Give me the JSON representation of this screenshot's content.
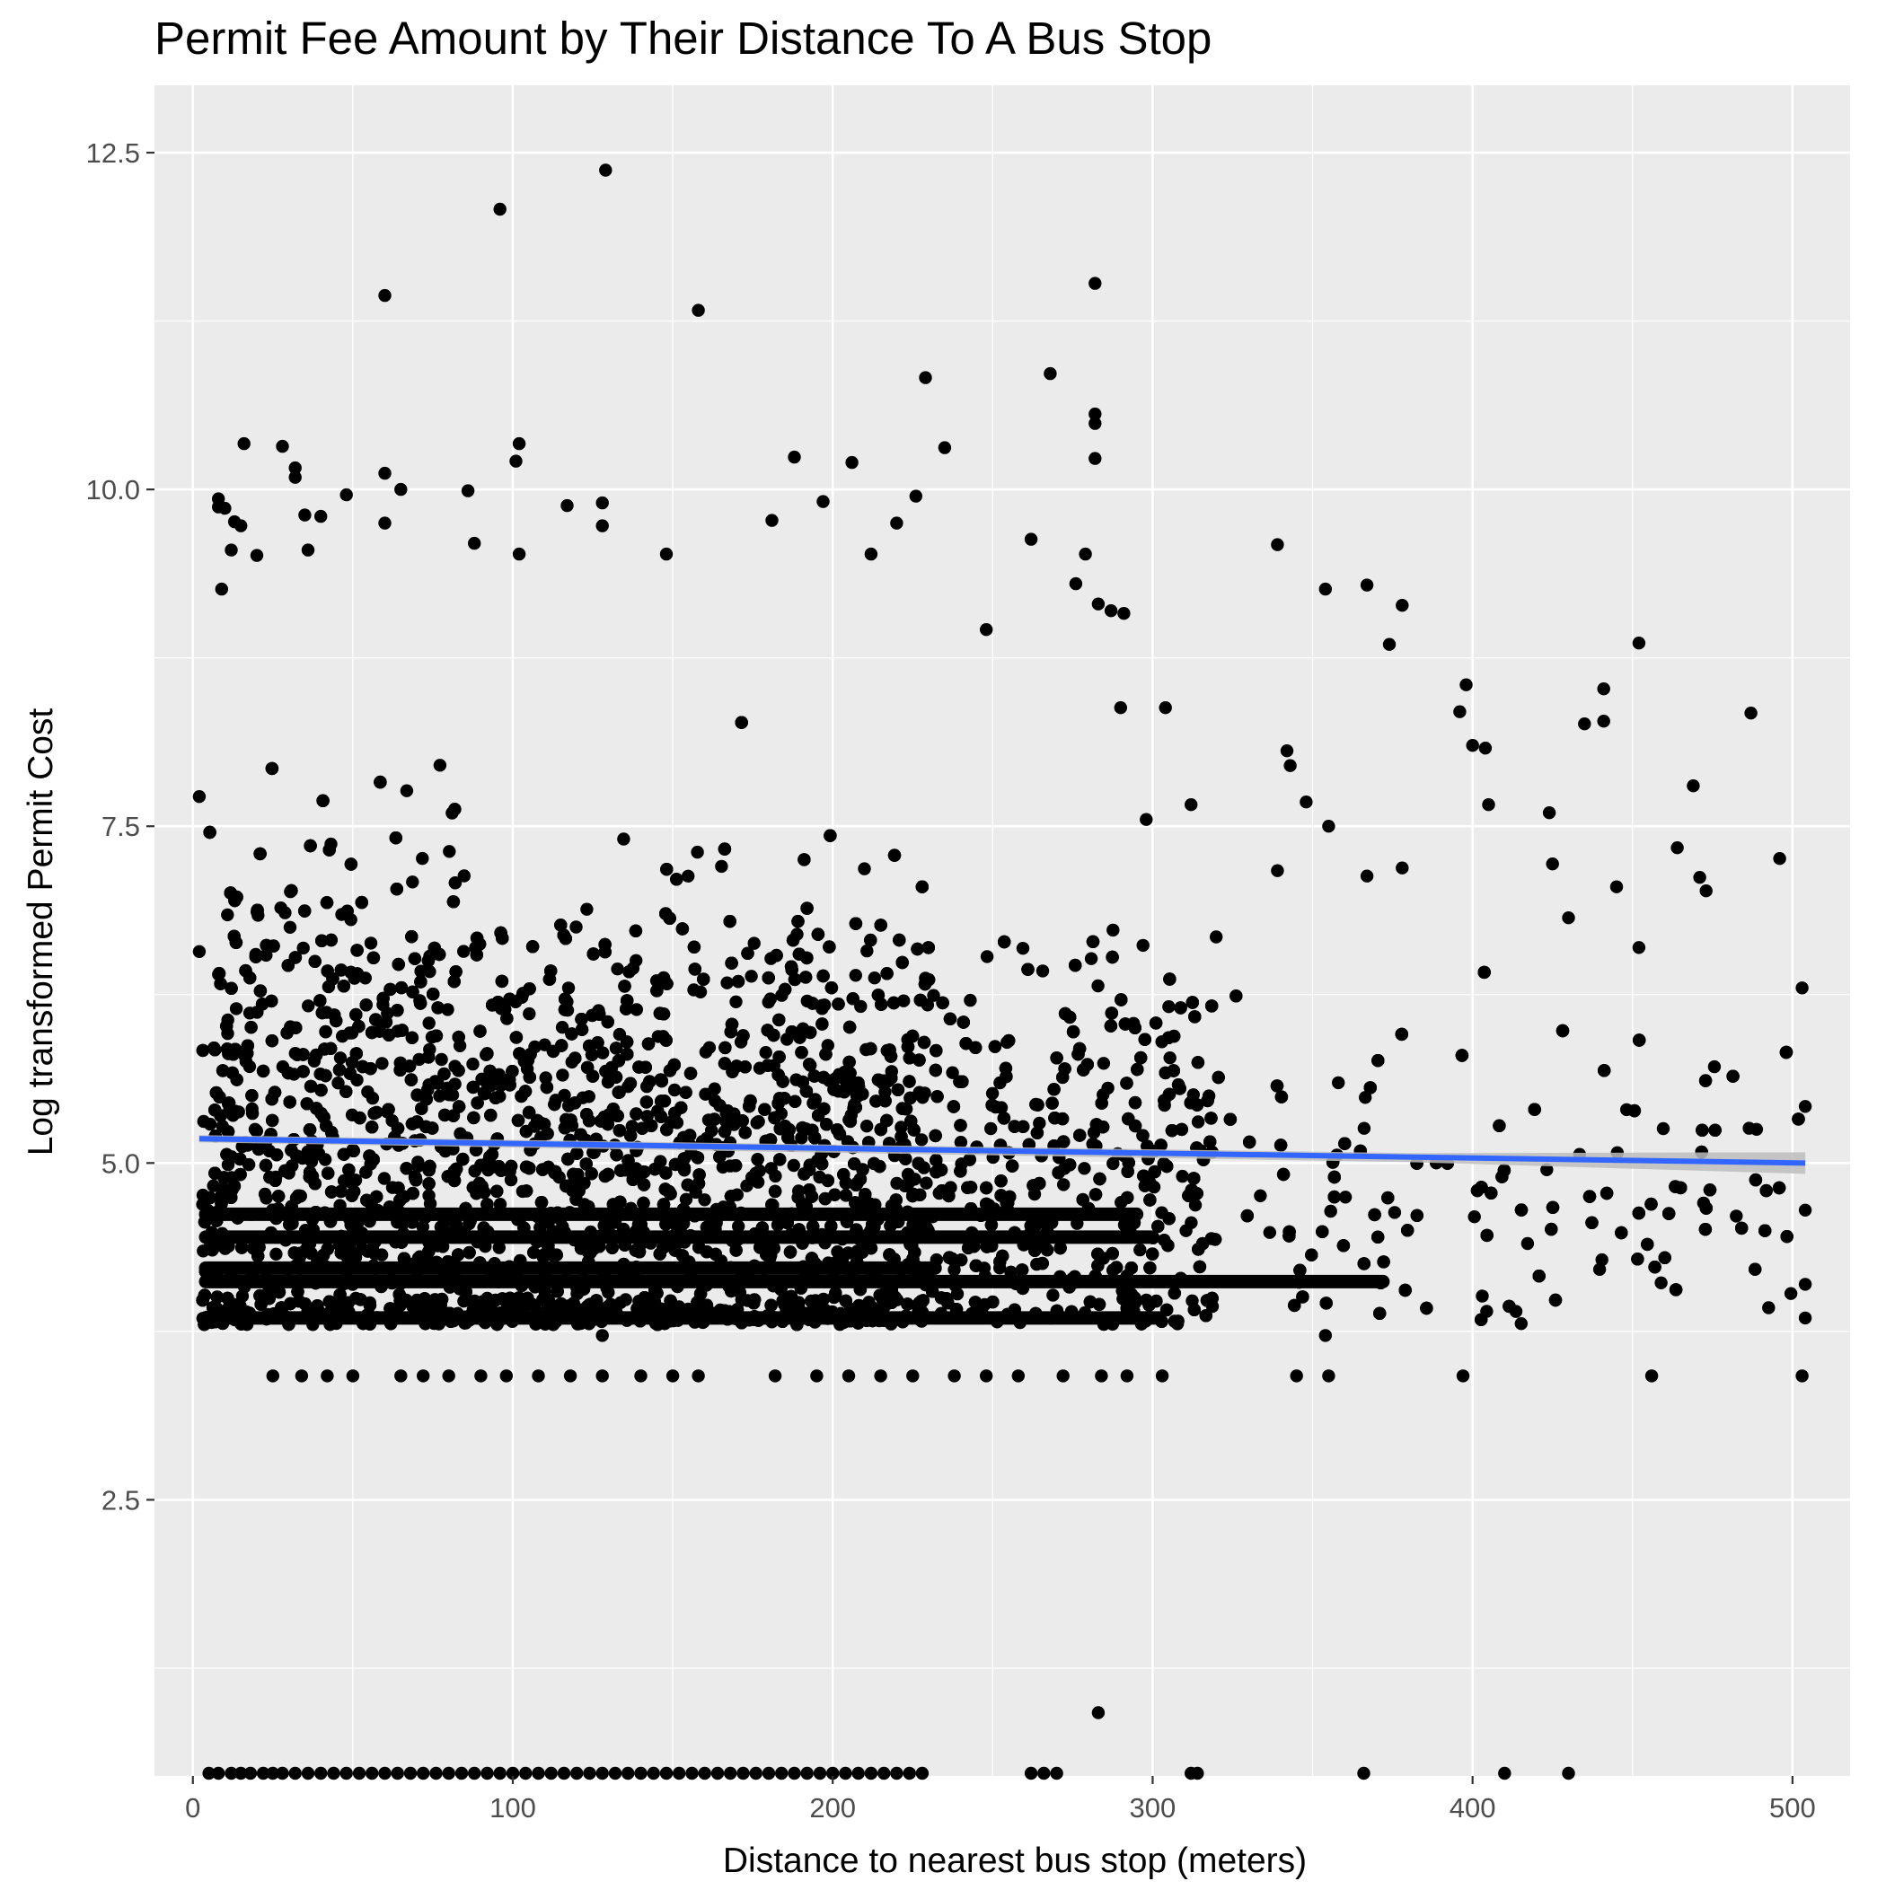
{
  "chart_data": {
    "type": "scatter",
    "title": "Permit Fee Amount by Their Distance To A Bus Stop",
    "xlabel": "Distance to nearest bus stop (meters)",
    "ylabel": "Log transformed Permit Cost",
    "xlim": [
      -12,
      518
    ],
    "ylim": [
      0.45,
      13.0
    ],
    "x_ticks": [
      0,
      100,
      200,
      300,
      400,
      500
    ],
    "x_tick_labels": [
      "0",
      "100",
      "200",
      "300",
      "400",
      "500"
    ],
    "y_ticks": [
      2.5,
      5.0,
      7.5,
      10.0,
      12.5
    ],
    "y_tick_labels": [
      "2.5",
      "5.0",
      "7.5",
      "10.0",
      "12.5"
    ],
    "grid": true,
    "background": "#ebebeb",
    "grid_color": "#ffffff",
    "point_color": "#000000",
    "trend_color": "#3366ff",
    "band_color": "#bdbdbd",
    "trend_line": {
      "x": [
        2,
        504
      ],
      "y": [
        5.18,
        5.0
      ]
    },
    "series": [
      {
        "points": [
          [
            129,
            12.37
          ],
          [
            96,
            12.08
          ],
          [
            60,
            11.44
          ],
          [
            158,
            11.33
          ],
          [
            282,
            11.53
          ],
          [
            229,
            10.83
          ],
          [
            268,
            10.86
          ],
          [
            282,
            10.56
          ],
          [
            282,
            10.49
          ],
          [
            282,
            10.23
          ],
          [
            16,
            10.34
          ],
          [
            28,
            10.32
          ],
          [
            102,
            10.34
          ],
          [
            235,
            10.31
          ],
          [
            188,
            10.24
          ],
          [
            32,
            10.16
          ],
          [
            32,
            10.09
          ],
          [
            60,
            10.12
          ],
          [
            101,
            10.21
          ],
          [
            206,
            10.2
          ],
          [
            8,
            9.93
          ],
          [
            10,
            9.86
          ],
          [
            8,
            9.87
          ],
          [
            13,
            9.76
          ],
          [
            15,
            9.73
          ],
          [
            12,
            9.55
          ],
          [
            48,
            9.96
          ],
          [
            65,
            10.0
          ],
          [
            86,
            9.99
          ],
          [
            117,
            9.88
          ],
          [
            128,
            9.9
          ],
          [
            197,
            9.91
          ],
          [
            226,
            9.95
          ],
          [
            35,
            9.81
          ],
          [
            40,
            9.8
          ],
          [
            60,
            9.75
          ],
          [
            128,
            9.73
          ],
          [
            181,
            9.77
          ],
          [
            220,
            9.75
          ],
          [
            262,
            9.63
          ],
          [
            279,
            9.52
          ],
          [
            339,
            9.59
          ],
          [
            20,
            9.51
          ],
          [
            36,
            9.55
          ],
          [
            88,
            9.6
          ],
          [
            102,
            9.52
          ],
          [
            148,
            9.52
          ],
          [
            212,
            9.52
          ],
          [
            9,
            9.26
          ],
          [
            354,
            9.26
          ],
          [
            367,
            9.29
          ],
          [
            276,
            9.3
          ],
          [
            283,
            9.15
          ],
          [
            287,
            9.1
          ],
          [
            291,
            9.08
          ],
          [
            378,
            9.14
          ],
          [
            374,
            8.85
          ],
          [
            452,
            8.86
          ],
          [
            248,
            8.96
          ],
          [
            290,
            8.38
          ],
          [
            304,
            8.38
          ],
          [
            298,
            7.55
          ],
          [
            312,
            7.66
          ],
          [
            339,
            7.17
          ],
          [
            342,
            8.06
          ],
          [
            343,
            7.95
          ],
          [
            348,
            7.68
          ],
          [
            355,
            7.5
          ],
          [
            367,
            7.13
          ],
          [
            378,
            7.19
          ],
          [
            396,
            8.35
          ],
          [
            398,
            8.55
          ],
          [
            400,
            8.1
          ],
          [
            404,
            8.08
          ],
          [
            405,
            7.66
          ],
          [
            424,
            7.6
          ],
          [
            425,
            7.22
          ],
          [
            430,
            6.82
          ],
          [
            435,
            8.26
          ],
          [
            441,
            8.28
          ],
          [
            441,
            8.52
          ],
          [
            445,
            7.05
          ],
          [
            469,
            7.8
          ],
          [
            464,
            7.34
          ],
          [
            471,
            7.12
          ],
          [
            473,
            7.02
          ],
          [
            487,
            8.34
          ],
          [
            496,
            7.26
          ],
          [
            452,
            6.6
          ],
          [
            498,
            5.82
          ],
          [
            503,
            6.3
          ],
          [
            504,
            5.42
          ],
          [
            504,
            4.65
          ],
          [
            504,
            4.1
          ],
          [
            504,
            3.85
          ],
          [
            503,
            3.42
          ],
          [
            2,
            7.72
          ],
          [
            2,
            6.57
          ],
          [
            283,
            0.92
          ],
          [
            456,
            3.42
          ],
          [
            397,
            3.42
          ],
          [
            354,
            3.72
          ],
          [
            128,
            3.72
          ],
          [
            303,
            3.42
          ],
          [
            272,
            3.42
          ],
          [
            25,
            3.42
          ],
          [
            34,
            3.42
          ],
          [
            42,
            3.42
          ],
          [
            50,
            3.42
          ],
          [
            65,
            3.42
          ],
          [
            72,
            3.42
          ],
          [
            80,
            3.42
          ],
          [
            90,
            3.42
          ],
          [
            98,
            3.42
          ],
          [
            108,
            3.42
          ],
          [
            118,
            3.42
          ],
          [
            128,
            3.42
          ],
          [
            140,
            3.42
          ],
          [
            150,
            3.42
          ],
          [
            158,
            3.42
          ],
          [
            182,
            3.42
          ],
          [
            195,
            3.42
          ],
          [
            205,
            3.42
          ],
          [
            215,
            3.42
          ],
          [
            225,
            3.42
          ],
          [
            238,
            3.42
          ],
          [
            248,
            3.42
          ],
          [
            258,
            3.42
          ],
          [
            284,
            3.42
          ],
          [
            292,
            3.42
          ],
          [
            345,
            3.42
          ],
          [
            355,
            3.42
          ]
        ]
      }
    ],
    "random_points": {
      "seed": 7,
      "x_range": [
        3,
        504
      ],
      "y_range": [
        3.7,
        9.8
      ],
      "count": 7000
    },
    "band_rows": [
      {
        "y": 3.85,
        "x_from": 4,
        "x_to": 302
      },
      {
        "y": 4.12,
        "x_from": 4,
        "x_to": 372
      },
      {
        "y": 4.22,
        "x_from": 4,
        "x_to": 232
      },
      {
        "y": 4.45,
        "x_from": 4,
        "x_to": 300
      },
      {
        "y": 4.62,
        "x_from": 4,
        "x_to": 295
      }
    ],
    "bottom_rows": {
      "y": 0.47,
      "x_values": [
        5,
        8,
        12,
        15,
        18,
        22,
        25,
        28,
        32,
        36,
        40,
        44,
        48,
        52,
        56,
        60,
        64,
        68,
        72,
        76,
        80,
        84,
        88,
        92,
        96,
        100,
        104,
        108,
        112,
        116,
        120,
        124,
        128,
        132,
        136,
        140,
        144,
        148,
        152,
        156,
        160,
        164,
        168,
        172,
        176,
        180,
        184,
        188,
        192,
        196,
        200,
        204,
        208,
        212,
        216,
        220,
        224,
        228,
        262,
        266,
        270,
        312,
        314,
        366,
        410,
        430
      ]
    }
  }
}
